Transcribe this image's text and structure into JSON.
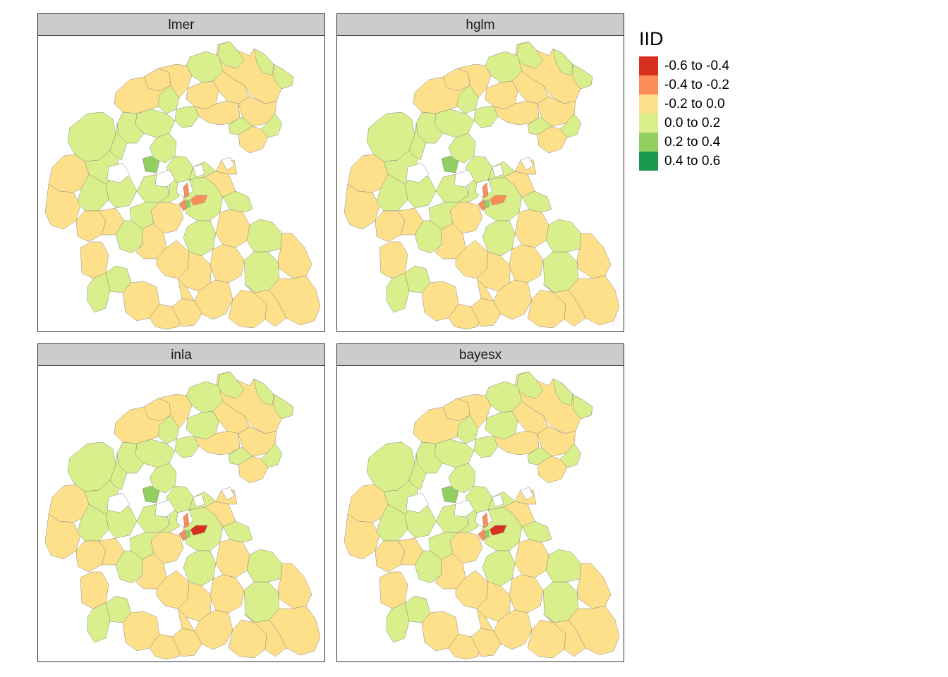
{
  "legend": {
    "title": "IID",
    "classes": [
      {
        "label": "-0.6 to -0.4",
        "color": "#d7301f"
      },
      {
        "label": "-0.4 to -0.2",
        "color": "#fc8d59"
      },
      {
        "label": "-0.2 to 0.0",
        "color": "#fee08b"
      },
      {
        "label": "0.0 to 0.2",
        "color": "#d9ef8b"
      },
      {
        "label": "0.2 to 0.4",
        "color": "#91cf60"
      },
      {
        "label": "0.4 to 0.6",
        "color": "#1a9850"
      }
    ]
  },
  "panels": [
    {
      "title": "lmer",
      "center": [
        "orange",
        "orange",
        "green"
      ]
    },
    {
      "title": "hglm",
      "center": [
        "orange",
        "orange",
        "green"
      ]
    },
    {
      "title": "inla",
      "center": [
        "red",
        "orange",
        "green"
      ]
    },
    {
      "title": "bayesx",
      "center": [
        "red",
        "orange",
        "green"
      ]
    }
  ]
}
